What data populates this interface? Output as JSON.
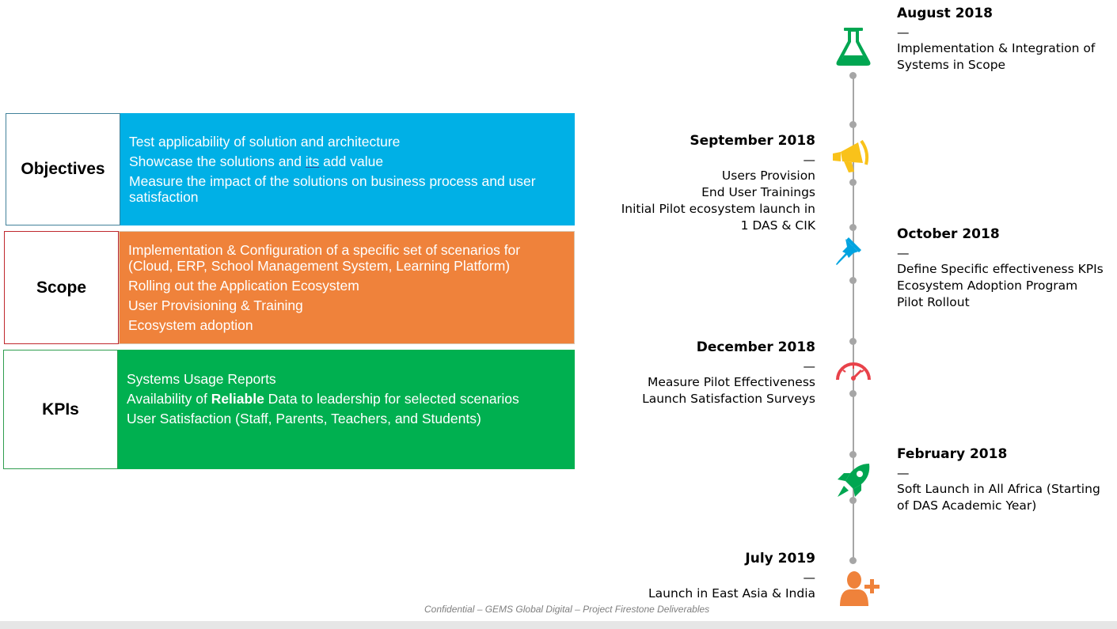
{
  "sections": [
    {
      "label": "Objectives",
      "color": "#00b0e6",
      "border": "#41819a",
      "lines": [
        "Test applicability of solution and architecture",
        "Showcase the solutions and its add value",
        "Measure the impact of the solutions on business process and user satisfaction"
      ]
    },
    {
      "label": "Scope",
      "color": "#ef823b",
      "border": "#c0282d",
      "lines": [
        "Implementation & Configuration of a specific set of scenarios for (Cloud, ERP, School Management System, Learning Platform)",
        "Rolling out the Application Ecosystem",
        "User Provisioning & Training",
        "Ecosystem adoption"
      ]
    },
    {
      "label": "KPIs",
      "color": "#00b050",
      "border": "#2f9e4f",
      "lines": [
        "Systems Usage Reports",
        "Availability of Reliable Data to leadership for selected scenarios",
        "User Satisfaction (Staff, Parents, Teachers, and Students)"
      ]
    }
  ],
  "timeline": [
    {
      "date": "August 2018",
      "dash": "—",
      "lines": [
        "Implementation & Integration of",
        "Systems in Scope"
      ],
      "icon": "flask-icon",
      "color": "#00a651"
    },
    {
      "date": "September 2018",
      "dash": "—",
      "lines": [
        "Users Provision",
        "End User Trainings",
        "Initial Pilot ecosystem launch in",
        "1 DAS & CIK"
      ],
      "icon": "megaphone-icon",
      "color": "#f9c21a"
    },
    {
      "date": "October 2018",
      "dash": "—",
      "lines": [
        "Define Specific effectiveness KPIs",
        "Ecosystem Adoption Program",
        "Pilot Rollout"
      ],
      "icon": "pushpin-icon",
      "color": "#00a3e0"
    },
    {
      "date": "December 2018",
      "dash": "—",
      "lines": [
        "Measure Pilot Effectiveness",
        "Launch Satisfaction Surveys"
      ],
      "icon": "speedometer-icon",
      "color": "#e8424a"
    },
    {
      "date": "February 2018",
      "dash": "—",
      "lines": [
        "Soft Launch in All Africa (Starting",
        "of DAS Academic Year)"
      ],
      "icon": "rocket-icon",
      "color": "#00a651"
    },
    {
      "date": "July 2019",
      "dash": "—",
      "lines": [
        "Launch in East Asia & India"
      ],
      "icon": "add-user-icon",
      "color": "#ef823b"
    }
  ],
  "footer": "Confidential – GEMS Global Digital – Project Firestone Deliverables"
}
